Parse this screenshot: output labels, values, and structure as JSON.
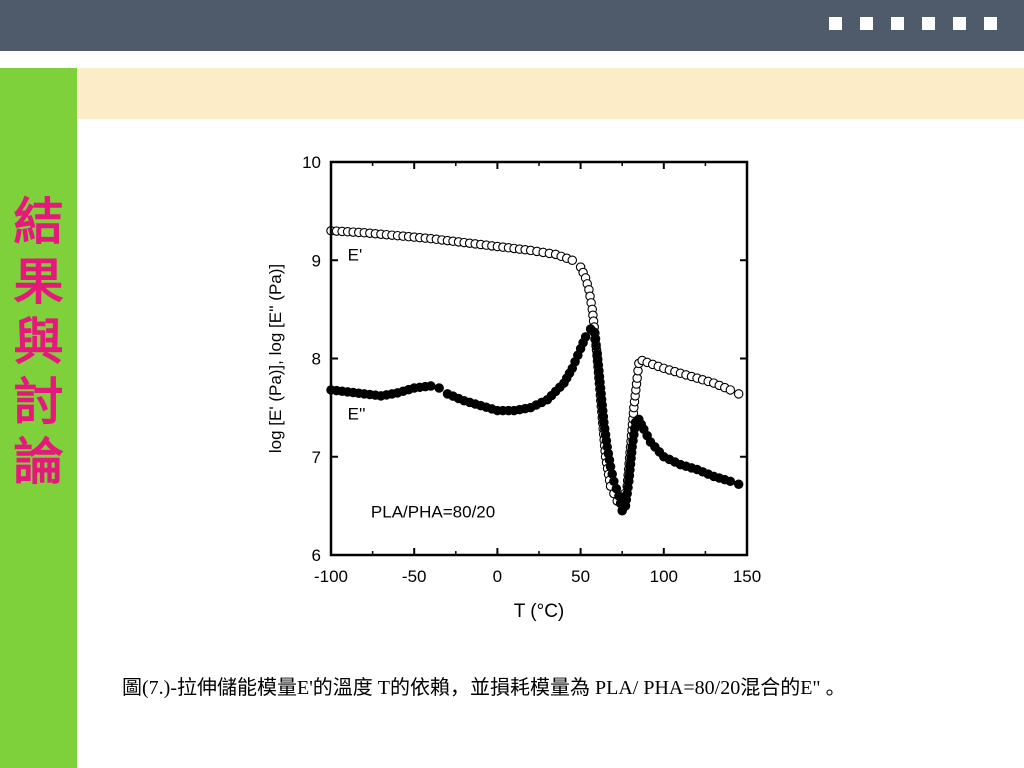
{
  "header": {
    "squares": 6
  },
  "sidebar": {
    "title": "結果與討論",
    "text_color": "#e5197c",
    "bg_color": "#7ed13a"
  },
  "colors": {
    "topbar": "#4f5a6b",
    "header_strip": "#fdecc8"
  },
  "figure": {
    "caption": "圖(7.)-拉伸儲能模量E'的溫度 T的依賴，並損耗模量為 PLA/ PHA=80/20混合的E\" 。"
  },
  "chart_data": {
    "type": "scatter",
    "xlabel": "T (°C)",
    "ylabel": "log [E' (Pa)], log [E'' (Pa)]",
    "xlim": [
      -100,
      150
    ],
    "ylim": [
      6,
      10
    ],
    "x_ticks": [
      "-100",
      "-50",
      "0",
      "50",
      "100",
      "150"
    ],
    "y_ticks": [
      "6",
      "7",
      "8",
      "9",
      "10"
    ],
    "annotation": "PLA/PHA=80/20",
    "series": [
      {
        "name": "E'",
        "marker": "open-circle",
        "points": [
          [
            -100,
            9.3
          ],
          [
            -80,
            9.28
          ],
          [
            -60,
            9.25
          ],
          [
            -40,
            9.22
          ],
          [
            -20,
            9.18
          ],
          [
            0,
            9.14
          ],
          [
            20,
            9.1
          ],
          [
            35,
            9.06
          ],
          [
            45,
            9.0
          ],
          [
            50,
            8.93
          ],
          [
            53,
            8.82
          ],
          [
            55,
            8.7
          ],
          [
            57,
            8.5
          ],
          [
            59,
            8.2
          ],
          [
            61,
            7.8
          ],
          [
            63,
            7.4
          ],
          [
            65,
            7.0
          ],
          [
            68,
            6.7
          ],
          [
            72,
            6.55
          ],
          [
            75,
            6.55
          ],
          [
            78,
            6.7
          ],
          [
            80,
            7.1
          ],
          [
            82,
            7.5
          ],
          [
            84,
            7.8
          ],
          [
            85,
            7.95
          ],
          [
            87,
            7.98
          ],
          [
            90,
            7.96
          ],
          [
            100,
            7.9
          ],
          [
            110,
            7.85
          ],
          [
            120,
            7.8
          ],
          [
            130,
            7.75
          ],
          [
            140,
            7.68
          ],
          [
            145,
            7.64
          ]
        ]
      },
      {
        "name": "E''",
        "marker": "filled-circle",
        "points": [
          [
            -100,
            7.68
          ],
          [
            -90,
            7.66
          ],
          [
            -80,
            7.64
          ],
          [
            -70,
            7.62
          ],
          [
            -60,
            7.65
          ],
          [
            -50,
            7.7
          ],
          [
            -40,
            7.72
          ],
          [
            -35,
            7.7
          ],
          [
            -30,
            7.64
          ],
          [
            -20,
            7.57
          ],
          [
            -10,
            7.52
          ],
          [
            0,
            7.47
          ],
          [
            10,
            7.47
          ],
          [
            20,
            7.5
          ],
          [
            30,
            7.58
          ],
          [
            40,
            7.75
          ],
          [
            45,
            7.9
          ],
          [
            50,
            8.1
          ],
          [
            53,
            8.22
          ],
          [
            56,
            8.3
          ],
          [
            58,
            8.27
          ],
          [
            60,
            8.05
          ],
          [
            62,
            7.7
          ],
          [
            64,
            7.35
          ],
          [
            66,
            7.1
          ],
          [
            68,
            6.9
          ],
          [
            70,
            6.75
          ],
          [
            73,
            6.6
          ],
          [
            75,
            6.45
          ],
          [
            77,
            6.5
          ],
          [
            79,
            6.75
          ],
          [
            81,
            7.1
          ],
          [
            83,
            7.35
          ],
          [
            85,
            7.38
          ],
          [
            88,
            7.28
          ],
          [
            92,
            7.15
          ],
          [
            100,
            7.0
          ],
          [
            110,
            6.92
          ],
          [
            120,
            6.87
          ],
          [
            130,
            6.8
          ],
          [
            140,
            6.75
          ],
          [
            145,
            6.72
          ]
        ]
      }
    ]
  }
}
